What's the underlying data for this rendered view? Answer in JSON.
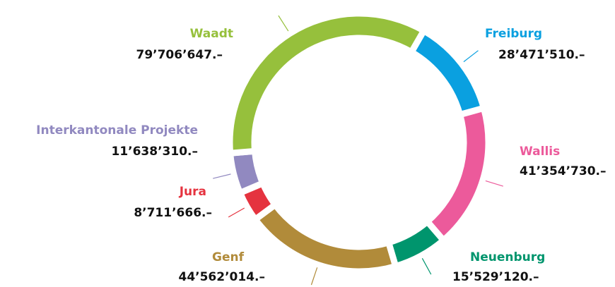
{
  "chart_data": {
    "type": "donut",
    "categories": [
      "Freiburg",
      "Wallis",
      "Neuenburg",
      "Genf",
      "Jura",
      "Interkantonale Projekte",
      "Waadt"
    ],
    "values": [
      28471510,
      41354730,
      15529120,
      44562014,
      8711666,
      11638310,
      79706647
    ],
    "value_labels": [
      "28’471’510.–",
      "41’354’730.–",
      "15’529’120.–",
      "44’562’014.–",
      "8’711’666.–",
      "11’638’310.–",
      "79’706’647.–"
    ],
    "colors": [
      "#0aa0e0",
      "#ec5a9b",
      "#00956d",
      "#b18b3a",
      "#e5333f",
      "#9189c0",
      "#96c03c"
    ]
  }
}
